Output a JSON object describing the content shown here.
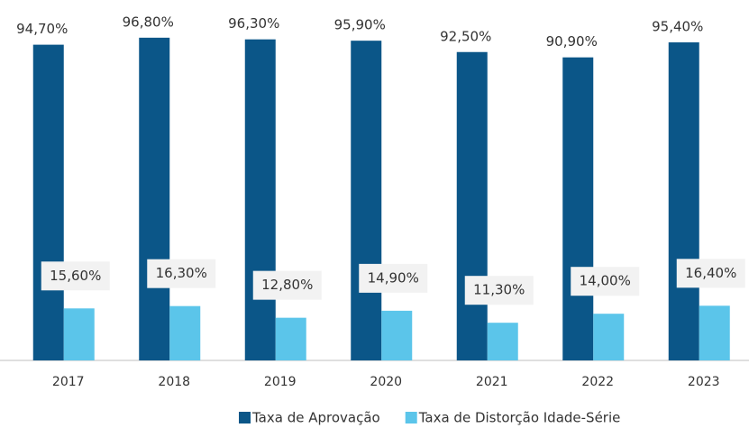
{
  "chart_data": {
    "type": "bar",
    "categories": [
      "2017",
      "2018",
      "2019",
      "2020",
      "2021",
      "2022",
      "2023"
    ],
    "series": [
      {
        "name": "Taxa de Aprovação",
        "color": "#0b5688",
        "values": [
          94.7,
          96.8,
          96.3,
          95.9,
          92.5,
          90.9,
          95.4
        ],
        "value_labels": [
          "94,70%",
          "96,80%",
          "96,30%",
          "95,90%",
          "92,50%",
          "90,90%",
          "95,40%"
        ]
      },
      {
        "name": "Taxa de Distorção Idade-Série",
        "color": "#5bc5ea",
        "values": [
          15.6,
          16.3,
          12.8,
          14.9,
          11.3,
          14.0,
          16.4
        ],
        "value_labels": [
          "15,60%",
          "16,30%",
          "12,80%",
          "14,90%",
          "11,30%",
          "14,00%",
          "16,40%"
        ]
      }
    ],
    "ylim": [
      0,
      100
    ],
    "legend": "bottom"
  }
}
